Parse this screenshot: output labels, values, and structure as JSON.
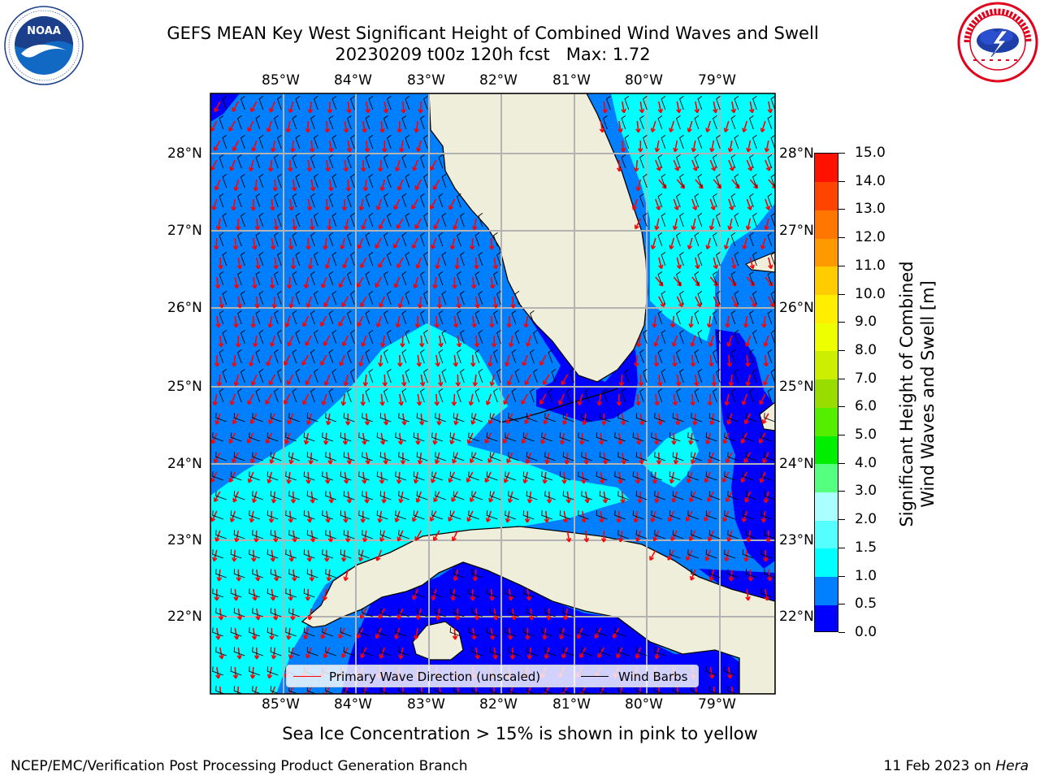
{
  "title": {
    "line1": "GEFS MEAN Key West Significant Height of Combined Wind Waves and Swell",
    "line2_run": "20230209 t00z 120h fcst",
    "line2_max": "Max: 1.72"
  },
  "logos": {
    "left": "noaa-logo",
    "right": "nws-logo"
  },
  "map": {
    "lon_labels": [
      "85°W",
      "84°W",
      "83°W",
      "82°W",
      "81°W",
      "80°W",
      "79°W"
    ],
    "lat_labels": [
      "22°N",
      "23°N",
      "24°N",
      "25°N",
      "26°N",
      "27°N",
      "28°N"
    ],
    "land_color": "#efeedb",
    "coast_color": "#000000",
    "grid_color": "#b3b3b3"
  },
  "legend": {
    "wave_direction": "Primary Wave Direction (unscaled)",
    "wind_barbs": "Wind Barbs",
    "wave_direction_color": "#ff0000",
    "wind_barbs_color": "#000000"
  },
  "colorbar": {
    "title_line1": "Significant Height of Combined",
    "title_line2": "Wind Waves and Swell [m]",
    "ticks": [
      "0.0",
      "0.5",
      "1.0",
      "1.5",
      "2.0",
      "3.0",
      "4.0",
      "5.0",
      "6.0",
      "7.0",
      "8.0",
      "9.0",
      "10.0",
      "11.0",
      "12.0",
      "13.0",
      "14.0",
      "15.0"
    ],
    "colors": [
      "#0000ff",
      "#0080ff",
      "#00ffff",
      "#55ffff",
      "#aaffff",
      "#55ff80",
      "#00ee00",
      "#55ee00",
      "#99dd00",
      "#ccee00",
      "#eeff00",
      "#ffee00",
      "#ffcc00",
      "#ff9900",
      "#ff7700",
      "#ff4400",
      "#ff1100"
    ]
  },
  "notes": {
    "sea_ice": "Sea Ice Concentration > 15% is shown in pink to yellow"
  },
  "footer": {
    "left": "NCEP/EMC/Verification Post Processing Product Generation Branch",
    "right_date": "11 Feb 2023 on",
    "right_host": "Hera"
  }
}
